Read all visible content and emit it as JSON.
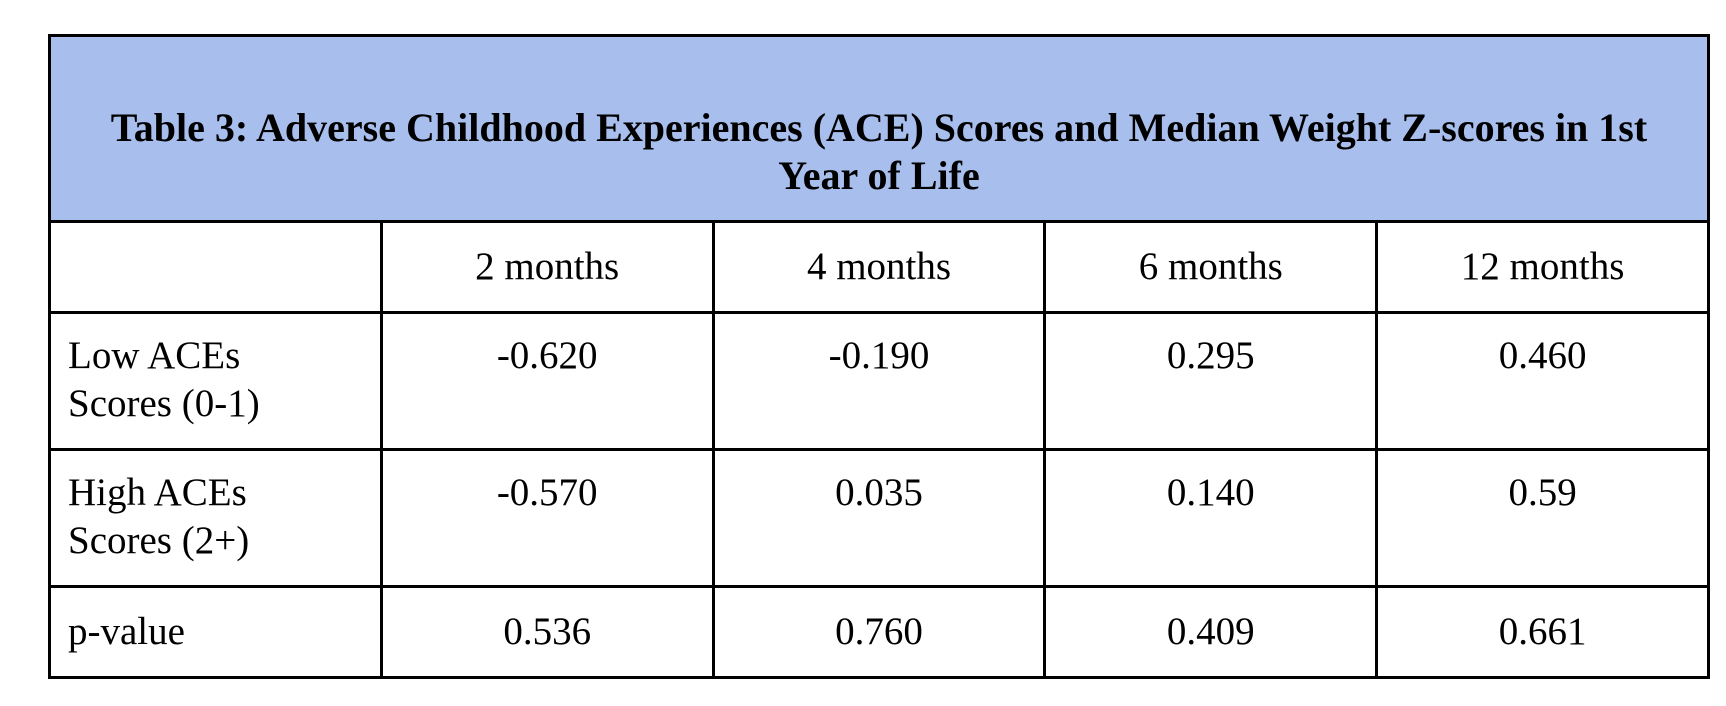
{
  "table": {
    "title": "Table 3: Adverse Childhood Experiences (ACE) Scores and Median Weight Z-scores in 1st Year of Life",
    "header_bg": "#a8bfee",
    "columns": [
      "",
      "2 months",
      "4 months",
      "6 months",
      "12 months"
    ],
    "rows": [
      {
        "label_line1": "Low ACEs",
        "label_line2": "Scores (0-1)",
        "values": [
          "-0.620",
          "-0.190",
          "0.295",
          "0.460"
        ]
      },
      {
        "label_line1": "High ACEs",
        "label_line2": "Scores (2+)",
        "values": [
          "-0.570",
          "0.035",
          "0.140",
          "0.59"
        ]
      },
      {
        "label": "p-value",
        "values": [
          "0.536",
          "0.760",
          "0.409",
          "0.661"
        ]
      }
    ]
  }
}
